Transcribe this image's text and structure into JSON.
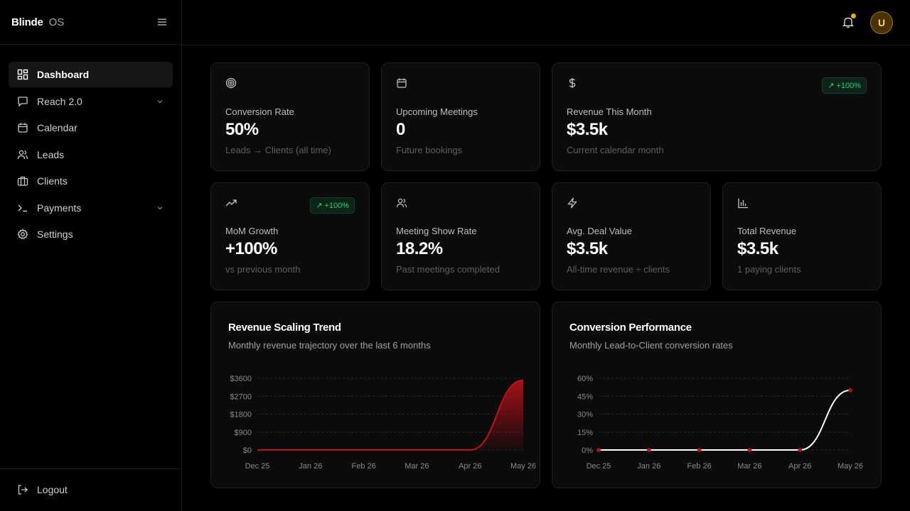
{
  "brand": {
    "name": "Blinde",
    "suffix": "OS"
  },
  "nav": {
    "items": [
      {
        "label": "Dashboard",
        "icon": "dashboard-icon",
        "active": true
      },
      {
        "label": "Reach 2.0",
        "icon": "chat-icon",
        "expandable": true
      },
      {
        "label": "Calendar",
        "icon": "calendar-icon"
      },
      {
        "label": "Leads",
        "icon": "users-icon"
      },
      {
        "label": "Clients",
        "icon": "briefcase-icon"
      },
      {
        "label": "Payments",
        "icon": "terminal-icon",
        "expandable": true
      },
      {
        "label": "Settings",
        "icon": "gear-icon"
      }
    ],
    "logout": "Logout"
  },
  "header": {
    "avatar_initial": "U",
    "notification_indicator_color": "#e9b100"
  },
  "stats": [
    {
      "label": "Conversion Rate",
      "value": "50%",
      "sub": "Leads → Clients (all time)",
      "icon": "target-icon"
    },
    {
      "label": "Upcoming Meetings",
      "value": "0",
      "sub": "Future bookings",
      "icon": "calendar-icon"
    },
    {
      "label": "Revenue This Month",
      "value": "$3.5k",
      "sub": "Current calendar month",
      "icon": "dollar-icon",
      "badge": "+100%"
    },
    {
      "label": "MoM Growth",
      "value": "+100%",
      "sub": "vs previous month",
      "icon": "trending-up-icon",
      "badge": "+100%"
    },
    {
      "label": "Meeting Show Rate",
      "value": "18.2%",
      "sub": "Past meetings completed",
      "icon": "users-icon"
    },
    {
      "label": "Avg. Deal Value",
      "value": "$3.5k",
      "sub": "All-time revenue ÷ clients",
      "icon": "bolt-icon"
    },
    {
      "label": "Total Revenue",
      "value": "$3.5k",
      "sub": "1 paying clients",
      "icon": "bar-chart-icon"
    }
  ],
  "colors": {
    "accent_red": "#c0121a",
    "badge_green": "#2fd27b",
    "background": "#000000",
    "card": "#0b0b0b"
  },
  "chart_data": [
    {
      "type": "area",
      "title": "Revenue Scaling Trend",
      "subtitle": "Monthly revenue trajectory over the last 6 months",
      "categories": [
        "Dec 25",
        "Jan 26",
        "Feb 26",
        "Mar 26",
        "Apr 26",
        "May 26"
      ],
      "series": [
        {
          "values": [
            0,
            0,
            0,
            0,
            0,
            3500
          ]
        }
      ],
      "y_ticks": [
        "$0",
        "$900",
        "$1800",
        "$2700",
        "$3600"
      ],
      "ylim": [
        0,
        3600
      ],
      "grid": true,
      "color": "#c0121a"
    },
    {
      "type": "line",
      "title": "Conversion Performance",
      "subtitle": "Monthly Lead-to-Client conversion rates",
      "categories": [
        "Dec 25",
        "Jan 26",
        "Feb 26",
        "Mar 26",
        "Apr 26",
        "May 26"
      ],
      "series": [
        {
          "values": [
            0,
            0,
            0,
            0,
            0,
            50
          ]
        }
      ],
      "y_ticks": [
        "0%",
        "15%",
        "30%",
        "45%",
        "60%"
      ],
      "ylim": [
        0,
        60
      ],
      "grid": true,
      "color": "#ffffff",
      "marker_color": "#c0121a"
    }
  ]
}
